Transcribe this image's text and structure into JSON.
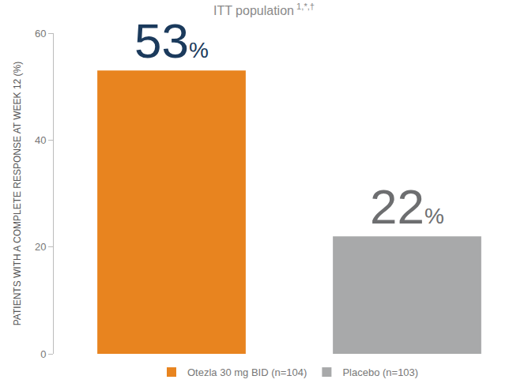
{
  "chart_data": {
    "type": "bar",
    "title": "ITT population",
    "title_superscript": "1,*,†",
    "y_label": "PATIENTS WITH A COMPLETE RESPONSE AT WEEK 12 (%)",
    "categories": [
      "Otezla 30 mg BID (n=104)",
      "Placebo (n=103)"
    ],
    "values": [
      53,
      22
    ],
    "value_labels": [
      "53%",
      "22%"
    ],
    "colors": [
      "#e8841f",
      "#a8a9aa"
    ],
    "ylim": [
      0,
      60
    ],
    "yticks": [
      0,
      20,
      40,
      60
    ],
    "grid": false,
    "data_labels": true,
    "legend": "bottom",
    "tick_labels": "y"
  }
}
